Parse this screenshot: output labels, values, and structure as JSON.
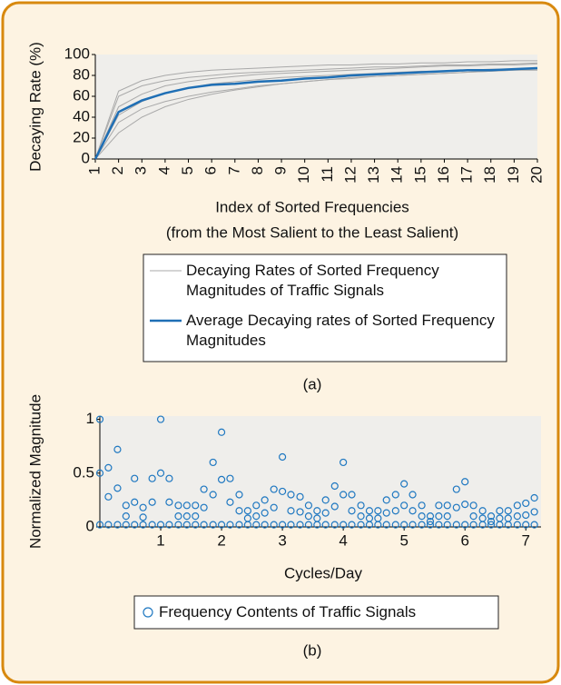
{
  "chart_data": [
    {
      "type": "line",
      "y_label": "Decaying Rate (%)",
      "x_label": [
        "Index of Sorted Frequencies",
        "(from the Most Salient to the Least Salient)"
      ],
      "caption": "(a)",
      "x": [
        1,
        2,
        3,
        4,
        5,
        6,
        7,
        8,
        9,
        10,
        11,
        12,
        13,
        14,
        15,
        16,
        17,
        18,
        19,
        20
      ],
      "xlim": [
        1,
        20
      ],
      "xticks": [
        1,
        2,
        3,
        4,
        5,
        6,
        7,
        8,
        9,
        10,
        11,
        12,
        13,
        14,
        15,
        16,
        17,
        18,
        19,
        20
      ],
      "ylim": [
        0,
        100
      ],
      "yticks": [
        0,
        20,
        40,
        60,
        80,
        100
      ],
      "series": [
        {
          "name": "Decaying Rates of Sorted Frequency Magnitudes of Traffic  Signals",
          "color": "#a9a9a9",
          "values": [
            [
              0,
              60,
              70,
              75,
              78,
              80,
              82,
              83,
              84,
              85,
              86,
              87,
              88,
              88,
              89,
              90,
              90,
              91,
              91,
              92
            ],
            [
              0,
              35,
              48,
              55,
              60,
              64,
              67,
              70,
              72,
              74,
              76,
              78,
              79,
              80,
              81,
              82,
              83,
              84,
              85,
              86
            ],
            [
              0,
              50,
              62,
              70,
              74,
              77,
              79,
              81,
              82,
              83,
              84,
              85,
              86,
              87,
              88,
              89,
              89,
              90,
              90,
              91
            ],
            [
              0,
              25,
              40,
              50,
              57,
              62,
              66,
              69,
              72,
              74,
              76,
              77,
              79,
              80,
              81,
              82,
              83,
              84,
              85,
              85
            ],
            [
              0,
              65,
              75,
              80,
              83,
              85,
              86,
              87,
              88,
              89,
              90,
              90,
              91,
              91,
              92,
              92,
              93,
              93,
              94,
              94
            ],
            [
              0,
              42,
              55,
              63,
              68,
              72,
              74,
              76,
              78,
              79,
              80,
              81,
              82,
              83,
              84,
              84,
              85,
              86,
              86,
              87
            ]
          ]
        },
        {
          "name": "Average Decaying rates of Sorted Frequency Magnitudes",
          "color": "#1f6fb5",
          "values": [
            0,
            45,
            56,
            63,
            68,
            71,
            72,
            74,
            75,
            77,
            78,
            80,
            81,
            82,
            83,
            84,
            85,
            85,
            86,
            87
          ]
        }
      ]
    },
    {
      "type": "scatter",
      "y_label": "Normalized Magnitude",
      "x_label": "Cycles/Day",
      "caption": "(b)",
      "xlim": [
        0,
        7.25
      ],
      "xticks": [
        1,
        2,
        3,
        4,
        5,
        6,
        7
      ],
      "ylim": [
        0,
        1.03
      ],
      "yticks": [
        0,
        0.5,
        1
      ],
      "x": [
        0,
        0.14,
        0.29,
        0.43,
        0.57,
        0.71,
        0.86,
        1,
        1.14,
        1.29,
        1.43,
        1.57,
        1.71,
        1.86,
        2,
        2.14,
        2.29,
        2.43,
        2.57,
        2.71,
        2.86,
        3,
        3.14,
        3.29,
        3.43,
        3.57,
        3.71,
        3.86,
        4,
        4.14,
        4.29,
        4.43,
        4.57,
        4.71,
        4.86,
        5,
        5.14,
        5.29,
        5.43,
        5.57,
        5.71,
        5.86,
        6,
        6.14,
        6.29,
        6.43,
        6.57,
        6.71,
        6.86,
        7,
        7.14,
        0,
        0.14,
        0.29,
        0.43,
        0.57,
        0.71,
        0.86,
        1,
        1.14,
        1.29,
        1.43,
        1.57,
        1.71,
        1.86,
        2,
        2.14,
        2.29,
        2.43,
        2.57,
        2.71,
        2.86,
        3,
        3.14,
        3.29,
        3.43,
        3.57,
        3.71,
        3.86,
        4,
        4.14,
        4.29,
        4.43,
        4.57,
        4.71,
        4.86,
        5,
        5.14,
        5.29,
        5.43,
        5.57,
        5.71,
        5.86,
        6,
        6.14,
        6.29,
        6.43,
        6.57,
        6.71,
        6.86,
        7,
        7.14,
        0,
        0.14,
        0.29,
        0.43,
        0.57,
        0.71,
        0.86,
        1,
        1.14,
        1.29,
        1.43,
        1.57,
        1.71,
        1.86,
        2,
        2.14,
        2.29,
        2.43,
        2.57,
        2.71,
        2.86,
        3,
        3.14,
        3.29,
        3.43,
        3.57,
        3.71,
        3.86,
        4,
        4.14,
        4.29,
        4.43,
        4.57,
        4.71,
        4.86,
        5,
        5.14,
        5.29,
        5.43,
        5.57,
        5.71,
        5.86,
        6,
        6.14,
        6.29,
        6.43,
        6.57,
        6.71,
        6.86,
        7,
        7.14
      ],
      "series": [
        {
          "name": "Frequency Contents of Traffic Signals",
          "color": "#1f78c1",
          "values": [
            0.02,
            0.02,
            0.02,
            0.02,
            0.02,
            0.02,
            0.02,
            0.02,
            0.02,
            0.02,
            0.02,
            0.02,
            0.02,
            0.02,
            0.02,
            0.02,
            0.02,
            0.02,
            0.02,
            0.02,
            0.02,
            0.02,
            0.02,
            0.02,
            0.02,
            0.02,
            0.02,
            0.02,
            0.02,
            0.02,
            0.02,
            0.02,
            0.02,
            0.02,
            0.02,
            0.02,
            0.02,
            0.02,
            0.02,
            0.02,
            0.02,
            0.02,
            0.02,
            0.02,
            0.02,
            0.02,
            0.02,
            0.02,
            0.02,
            0.02,
            0.02,
            0.5,
            0.28,
            0.36,
            0.1,
            0.23,
            0.09,
            0.23,
            0.5,
            0.23,
            0.1,
            0.1,
            0.1,
            0.18,
            0.3,
            0.44,
            0.23,
            0.15,
            0.08,
            0.1,
            0.13,
            0.18,
            0.33,
            0.15,
            0.14,
            0.1,
            0.08,
            0.13,
            0.19,
            0.3,
            0.15,
            0.1,
            0.08,
            0.08,
            0.13,
            0.15,
            0.2,
            0.15,
            0.1,
            0.05,
            0.1,
            0.1,
            0.18,
            0.21,
            0.1,
            0.08,
            0.05,
            0.08,
            0.08,
            0.1,
            0.11,
            0.14,
            1,
            0.55,
            0.72,
            0.2,
            0.45,
            0.18,
            0.45,
            1,
            0.45,
            0.2,
            0.2,
            0.2,
            0.35,
            0.6,
            0.88,
            0.45,
            0.3,
            0.15,
            0.2,
            0.25,
            0.35,
            0.65,
            0.3,
            0.28,
            0.2,
            0.15,
            0.25,
            0.38,
            0.6,
            0.3,
            0.2,
            0.15,
            0.15,
            0.25,
            0.3,
            0.4,
            0.3,
            0.2,
            0.1,
            0.2,
            0.2,
            0.35,
            0.42,
            0.2,
            0.15,
            0.1,
            0.15,
            0.15,
            0.2,
            0.22,
            0.27
          ]
        }
      ]
    }
  ]
}
